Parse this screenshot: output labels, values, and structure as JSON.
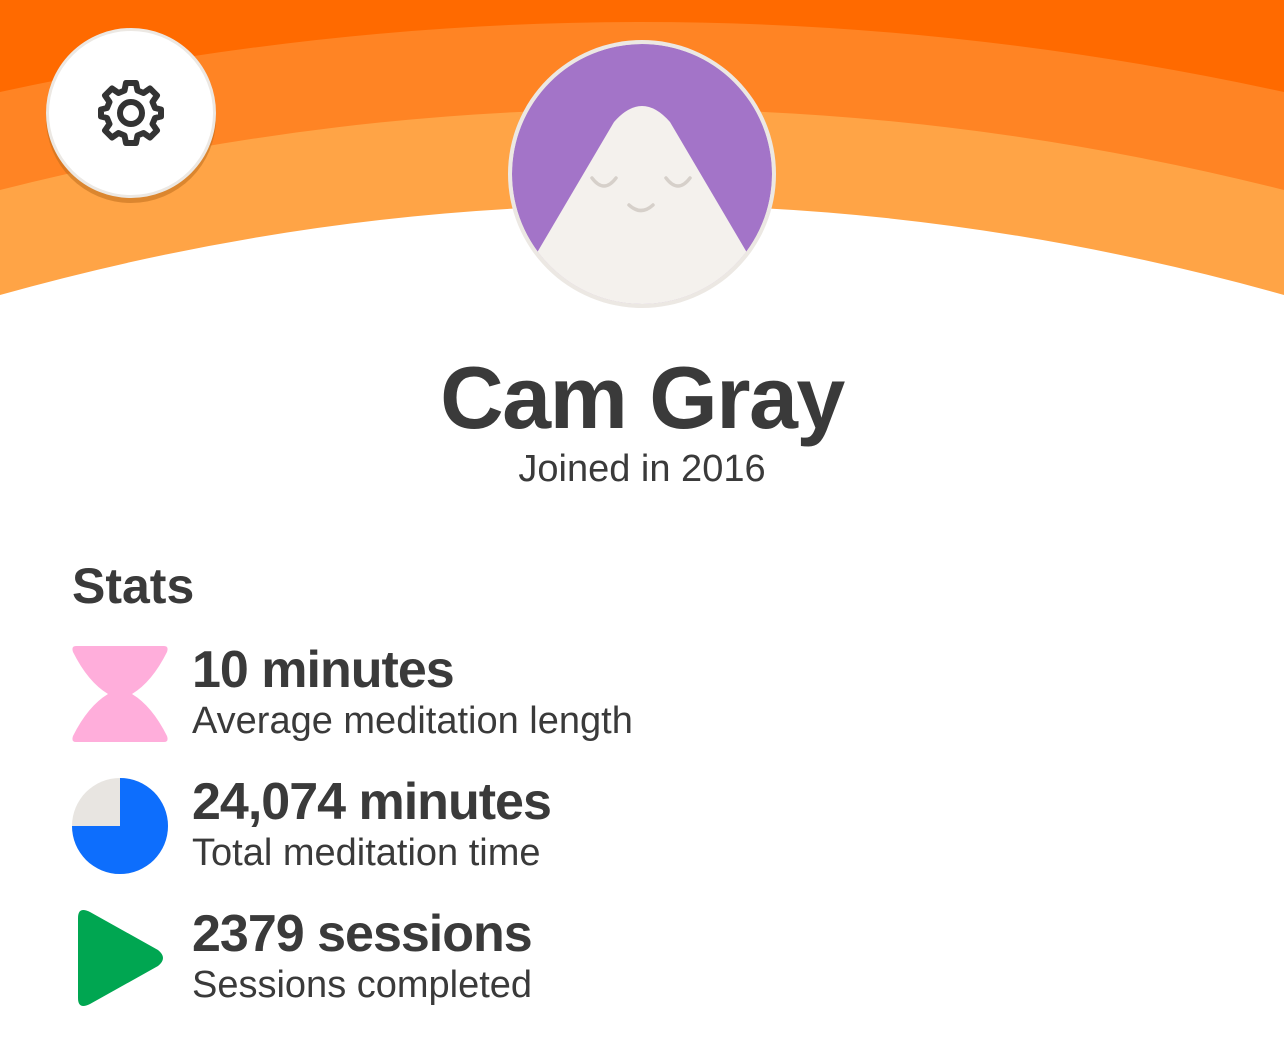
{
  "profile": {
    "name": "Cam Gray",
    "joined": "Joined in 2016",
    "avatar_color": "#a374c8"
  },
  "header": {
    "colors": [
      "#ff6a00",
      "#ff8424",
      "#ffa446"
    ]
  },
  "settings": {
    "icon": "gear-icon"
  },
  "stats": {
    "heading": "Stats",
    "items": [
      {
        "value": "10 minutes",
        "label": "Average meditation length",
        "icon": "hourglass-icon",
        "color": "#ffaedb"
      },
      {
        "value": "24,074 minutes",
        "label": "Total meditation time",
        "icon": "pie-clock-icon",
        "color": "#0d6efd",
        "fill_fraction": 0.75
      },
      {
        "value": "2379 sessions",
        "label": "Sessions completed",
        "icon": "play-icon",
        "color": "#00a651"
      }
    ]
  }
}
